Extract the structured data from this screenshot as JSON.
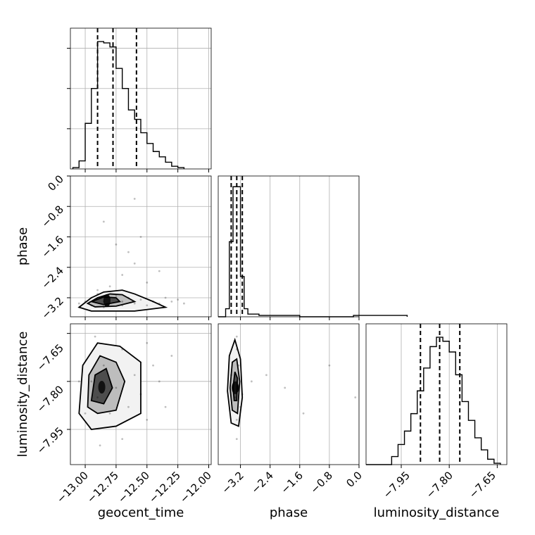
{
  "chart_data": [
    {
      "type": "histogram",
      "panel": "1d-geocent_time",
      "parameter": "geocent_time",
      "xlim": [
        -13.12,
        -11.98
      ],
      "x_ticks": [
        -13.0,
        -12.75,
        -12.5,
        -12.25,
        -12.0
      ],
      "y_ticks": [
        0.3,
        0.6,
        0.9
      ],
      "ylim": [
        0,
        1.05
      ],
      "quantiles": [
        -12.9,
        -12.775,
        -12.585
      ],
      "bins": [
        [
          -13.1,
          0.01
        ],
        [
          -13.05,
          0.06
        ],
        [
          -13.0,
          0.34
        ],
        [
          -12.95,
          0.6
        ],
        [
          -12.9,
          0.95
        ],
        [
          -12.85,
          0.94
        ],
        [
          -12.8,
          0.91
        ],
        [
          -12.75,
          0.75
        ],
        [
          -12.7,
          0.6
        ],
        [
          -12.65,
          0.44
        ],
        [
          -12.6,
          0.37
        ],
        [
          -12.55,
          0.27
        ],
        [
          -12.5,
          0.19
        ],
        [
          -12.45,
          0.13
        ],
        [
          -12.4,
          0.09
        ],
        [
          -12.35,
          0.05
        ],
        [
          -12.3,
          0.02
        ],
        [
          -12.25,
          0.01
        ]
      ],
      "grid": true
    },
    {
      "type": "histogram",
      "panel": "1d-phase",
      "parameter": "phase",
      "xlim": [
        -3.8,
        0.0
      ],
      "x_ticks": [
        -3.2,
        -2.4,
        -1.6,
        -0.8,
        0.0
      ],
      "ylim": [
        0,
        1.05
      ],
      "quantiles": [
        -3.45,
        -3.3,
        -3.15
      ],
      "bins": [
        [
          -3.8,
          0.0
        ],
        [
          -3.6,
          0.06
        ],
        [
          -3.5,
          0.56
        ],
        [
          -3.4,
          0.97
        ],
        [
          -3.3,
          0.97
        ],
        [
          -3.2,
          0.3
        ],
        [
          -3.1,
          0.06
        ],
        [
          -3.0,
          0.02
        ],
        [
          -2.7,
          0.01
        ],
        [
          -1.6,
          0.0
        ],
        [
          -0.15,
          0.01
        ]
      ],
      "grid": true
    },
    {
      "type": "histogram",
      "panel": "1d-luminosity_distance",
      "parameter": "luminosity_distance",
      "xlim": [
        -8.06,
        -7.62
      ],
      "x_ticks": [
        -7.95,
        -7.8,
        -7.65
      ],
      "ylim": [
        0,
        1.05
      ],
      "quantiles": [
        -7.89,
        -7.83,
        -7.767
      ],
      "bins": [
        [
          -8.06,
          0.0
        ],
        [
          -7.98,
          0.06
        ],
        [
          -7.96,
          0.15
        ],
        [
          -7.94,
          0.25
        ],
        [
          -7.92,
          0.38
        ],
        [
          -7.9,
          0.55
        ],
        [
          -7.88,
          0.72
        ],
        [
          -7.86,
          0.88
        ],
        [
          -7.84,
          0.95
        ],
        [
          -7.82,
          0.92
        ],
        [
          -7.8,
          0.84
        ],
        [
          -7.78,
          0.67
        ],
        [
          -7.76,
          0.47
        ],
        [
          -7.74,
          0.33
        ],
        [
          -7.72,
          0.2
        ],
        [
          -7.7,
          0.11
        ],
        [
          -7.68,
          0.04
        ],
        [
          -7.66,
          0.01
        ]
      ],
      "grid": true
    },
    {
      "type": "scatter",
      "panel": "2d-geocent_time-phase",
      "xlabel": "",
      "ylabel": "phase",
      "xlim": [
        -13.12,
        -11.98
      ],
      "ylim": [
        -3.7,
        0.0
      ],
      "x_ticks": [
        -13.0,
        -12.75,
        -12.5,
        -12.25,
        -12.0
      ],
      "y_ticks": [
        0.0,
        -0.8,
        -1.6,
        -2.4,
        -3.2
      ],
      "y_tick_labels": [
        "0.0",
        "−0.8",
        "−1.6",
        "−2.4",
        "−3.2"
      ],
      "points": [
        [
          -12.95,
          -3.2
        ],
        [
          -12.9,
          -3.1
        ],
        [
          -12.85,
          -3.3
        ],
        [
          -12.8,
          -3.2
        ],
        [
          -12.75,
          -3.15
        ],
        [
          -12.7,
          -3.3
        ],
        [
          -12.65,
          -3.2
        ],
        [
          -12.6,
          -3.35
        ],
        [
          -12.55,
          -3.25
        ],
        [
          -12.5,
          -3.4
        ],
        [
          -12.45,
          -3.3
        ],
        [
          -12.4,
          -3.35
        ],
        [
          -12.9,
          -3.0
        ],
        [
          -12.8,
          -2.9
        ],
        [
          -12.7,
          -2.6
        ],
        [
          -12.6,
          -2.3
        ],
        [
          -12.65,
          -2.0
        ],
        [
          -12.75,
          -1.8
        ],
        [
          -12.55,
          -1.6
        ],
        [
          -12.5,
          -2.8
        ],
        [
          -12.35,
          -3.2
        ],
        [
          -12.3,
          -3.3
        ],
        [
          -12.25,
          -3.25
        ],
        [
          -12.95,
          -3.4
        ],
        [
          -13.0,
          -3.3
        ],
        [
          -13.05,
          -3.35
        ],
        [
          -12.85,
          -3.45
        ],
        [
          -12.7,
          -3.4
        ],
        [
          -12.6,
          -0.6
        ],
        [
          -12.4,
          -2.5
        ],
        [
          -12.85,
          -1.2
        ],
        [
          -12.2,
          -3.35
        ]
      ],
      "contours": [
        [
          [
            -13.05,
            -3.45
          ],
          [
            -12.95,
            -3.2
          ],
          [
            -12.85,
            -3.05
          ],
          [
            -12.7,
            -3.0
          ],
          [
            -12.6,
            -3.1
          ],
          [
            -12.45,
            -3.3
          ],
          [
            -12.35,
            -3.45
          ],
          [
            -12.6,
            -3.55
          ],
          [
            -12.95,
            -3.55
          ]
        ],
        [
          [
            -12.98,
            -3.35
          ],
          [
            -12.9,
            -3.2
          ],
          [
            -12.8,
            -3.1
          ],
          [
            -12.7,
            -3.12
          ],
          [
            -12.6,
            -3.3
          ],
          [
            -12.75,
            -3.42
          ],
          [
            -12.92,
            -3.44
          ]
        ],
        [
          [
            -12.95,
            -3.3
          ],
          [
            -12.85,
            -3.18
          ],
          [
            -12.75,
            -3.2
          ],
          [
            -12.72,
            -3.3
          ],
          [
            -12.85,
            -3.38
          ]
        ]
      ],
      "grid": true
    },
    {
      "type": "scatter",
      "panel": "2d-geocent_time-luminosity_distance",
      "xlabel": "geocent_time",
      "ylabel": "luminosity_distance",
      "xlim": [
        -13.12,
        -11.98
      ],
      "ylim": [
        -8.06,
        -7.62
      ],
      "x_ticks": [
        -13.0,
        -12.75,
        -12.5,
        -12.25,
        -12.0
      ],
      "x_tick_labels": [
        "−13.00",
        "−12.75",
        "−12.50",
        "−12.25",
        "−12.00"
      ],
      "y_ticks": [
        -7.65,
        -7.8,
        -7.95
      ],
      "y_tick_labels": [
        "−7.65",
        "−7.80",
        "−7.95"
      ],
      "points": [
        [
          -12.95,
          -7.8
        ],
        [
          -12.9,
          -7.85
        ],
        [
          -12.85,
          -7.75
        ],
        [
          -12.8,
          -7.9
        ],
        [
          -12.75,
          -7.82
        ],
        [
          -12.7,
          -7.7
        ],
        [
          -12.65,
          -7.88
        ],
        [
          -12.6,
          -7.78
        ],
        [
          -12.55,
          -7.84
        ],
        [
          -12.5,
          -7.92
        ],
        [
          -12.45,
          -7.75
        ],
        [
          -12.4,
          -7.8
        ],
        [
          -13.0,
          -7.9
        ],
        [
          -13.05,
          -7.8
        ],
        [
          -12.35,
          -7.88
        ],
        [
          -12.3,
          -7.72
        ],
        [
          -12.92,
          -7.66
        ],
        [
          -12.7,
          -7.98
        ],
        [
          -12.88,
          -8.0
        ],
        [
          -12.5,
          -7.68
        ]
      ],
      "contours": [
        [
          [
            -13.05,
            -7.9
          ],
          [
            -13.02,
            -7.75
          ],
          [
            -12.9,
            -7.68
          ],
          [
            -12.72,
            -7.69
          ],
          [
            -12.55,
            -7.74
          ],
          [
            -12.55,
            -7.9
          ],
          [
            -12.75,
            -7.94
          ],
          [
            -12.95,
            -7.95
          ]
        ],
        [
          [
            -12.98,
            -7.88
          ],
          [
            -12.97,
            -7.78
          ],
          [
            -12.88,
            -7.72
          ],
          [
            -12.75,
            -7.74
          ],
          [
            -12.68,
            -7.8
          ],
          [
            -12.75,
            -7.89
          ],
          [
            -12.9,
            -7.9
          ]
        ],
        [
          [
            -12.95,
            -7.86
          ],
          [
            -12.92,
            -7.78
          ],
          [
            -12.83,
            -7.76
          ],
          [
            -12.78,
            -7.82
          ],
          [
            -12.85,
            -7.87
          ]
        ]
      ],
      "grid": true
    },
    {
      "type": "scatter",
      "panel": "2d-phase-luminosity_distance",
      "xlabel": "phase",
      "xlim": [
        -3.8,
        0.0
      ],
      "ylim": [
        -8.06,
        -7.62
      ],
      "x_ticks": [
        -3.2,
        -2.4,
        -1.6,
        -0.8,
        0.0
      ],
      "x_tick_labels": [
        "−3.2",
        "−2.4",
        "−1.6",
        "−0.8",
        "0.0"
      ],
      "points": [
        [
          -3.3,
          -7.8
        ],
        [
          -3.35,
          -7.85
        ],
        [
          -3.25,
          -7.75
        ],
        [
          -3.3,
          -7.92
        ],
        [
          -3.4,
          -7.82
        ],
        [
          -3.2,
          -7.88
        ],
        [
          -3.3,
          -7.7
        ],
        [
          -3.45,
          -7.78
        ],
        [
          -3.15,
          -7.84
        ],
        [
          -2.9,
          -7.8
        ],
        [
          -2.5,
          -7.78
        ],
        [
          -2.0,
          -7.82
        ],
        [
          -1.5,
          -7.9
        ],
        [
          -0.8,
          -7.75
        ],
        [
          -0.1,
          -7.85
        ],
        [
          -3.3,
          -7.98
        ],
        [
          -3.3,
          -7.66
        ]
      ],
      "contours": [
        [
          [
            -3.55,
            -7.83
          ],
          [
            -3.5,
            -7.72
          ],
          [
            -3.35,
            -7.67
          ],
          [
            -3.2,
            -7.73
          ],
          [
            -3.15,
            -7.85
          ],
          [
            -3.25,
            -7.94
          ],
          [
            -3.45,
            -7.93
          ]
        ],
        [
          [
            -3.48,
            -7.82
          ],
          [
            -3.42,
            -7.74
          ],
          [
            -3.3,
            -7.73
          ],
          [
            -3.22,
            -7.8
          ],
          [
            -3.28,
            -7.9
          ],
          [
            -3.42,
            -7.89
          ]
        ],
        [
          [
            -3.4,
            -7.82
          ],
          [
            -3.35,
            -7.77
          ],
          [
            -3.28,
            -7.79
          ],
          [
            -3.3,
            -7.86
          ],
          [
            -3.37,
            -7.86
          ]
        ]
      ],
      "grid": true
    }
  ],
  "axes": {
    "geocent_time": "geocent_time",
    "phase": "phase",
    "luminosity_distance": "luminosity_distance"
  },
  "ticks": {
    "geocent_time": [
      "−13.00",
      "−12.75",
      "−12.50",
      "−12.25",
      "−12.00"
    ],
    "phase_x": [
      "−3.2",
      "−2.4",
      "−1.6",
      "−0.8",
      "0.0"
    ],
    "phase_y": [
      "0.0",
      "−0.8",
      "−1.6",
      "−2.4",
      "−3.2"
    ],
    "luminosity_distance_x": [
      "−7.95",
      "−7.80",
      "−7.65"
    ],
    "luminosity_distance_y": [
      "−7.65",
      "−7.80",
      "−7.95"
    ]
  }
}
